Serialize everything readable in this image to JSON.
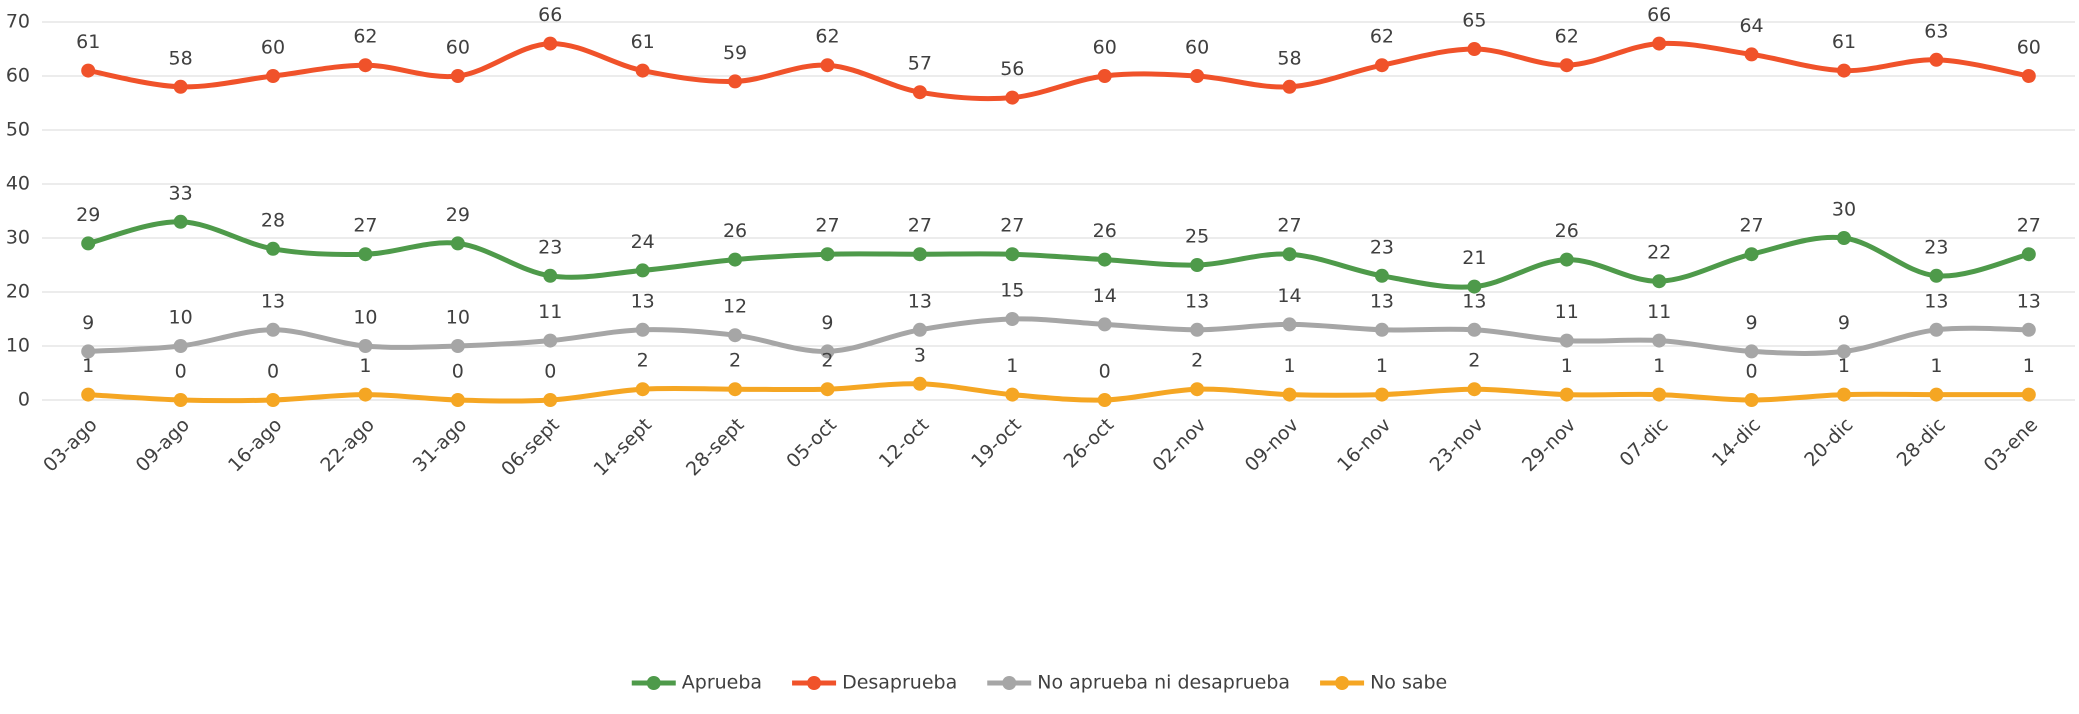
{
  "chart_data": {
    "type": "line",
    "categories": [
      "03-ago",
      "09-ago",
      "16-ago",
      "22-ago",
      "31-ago",
      "06-sept",
      "14-sept",
      "28-sept",
      "05-oct",
      "12-oct",
      "19-oct",
      "26-oct",
      "02-nov",
      "09-nov",
      "16-nov",
      "23-nov",
      "29-nov",
      "07-dic",
      "14-dic",
      "20-dic",
      "28-dic",
      "03-ene"
    ],
    "series": [
      {
        "name": "Aprueba",
        "color": "#4e9a4a",
        "values": [
          29,
          33,
          28,
          27,
          29,
          23,
          24,
          26,
          27,
          27,
          27,
          26,
          25,
          27,
          23,
          21,
          26,
          22,
          27,
          30,
          23,
          27
        ]
      },
      {
        "name": "Desaprueba",
        "color": "#f0522a",
        "values": [
          61,
          58,
          60,
          62,
          60,
          66,
          61,
          59,
          62,
          57,
          56,
          60,
          60,
          58,
          62,
          65,
          62,
          66,
          64,
          61,
          63,
          60
        ]
      },
      {
        "name": "No aprueba ni desaprueba",
        "color": "#a6a6a6",
        "values": [
          9,
          10,
          13,
          10,
          10,
          11,
          13,
          12,
          9,
          13,
          15,
          14,
          13,
          14,
          13,
          13,
          11,
          11,
          9,
          9,
          13,
          13
        ]
      },
      {
        "name": "No sabe",
        "color": "#f5a623",
        "values": [
          1,
          0,
          0,
          1,
          0,
          0,
          2,
          2,
          2,
          3,
          1,
          0,
          2,
          1,
          1,
          2,
          1,
          1,
          0,
          1,
          1,
          1
        ]
      }
    ],
    "ylim": [
      0,
      70
    ],
    "yticks": [
      0,
      10,
      20,
      30,
      40,
      50,
      60,
      70
    ],
    "grid": true,
    "legend": "bottom"
  }
}
